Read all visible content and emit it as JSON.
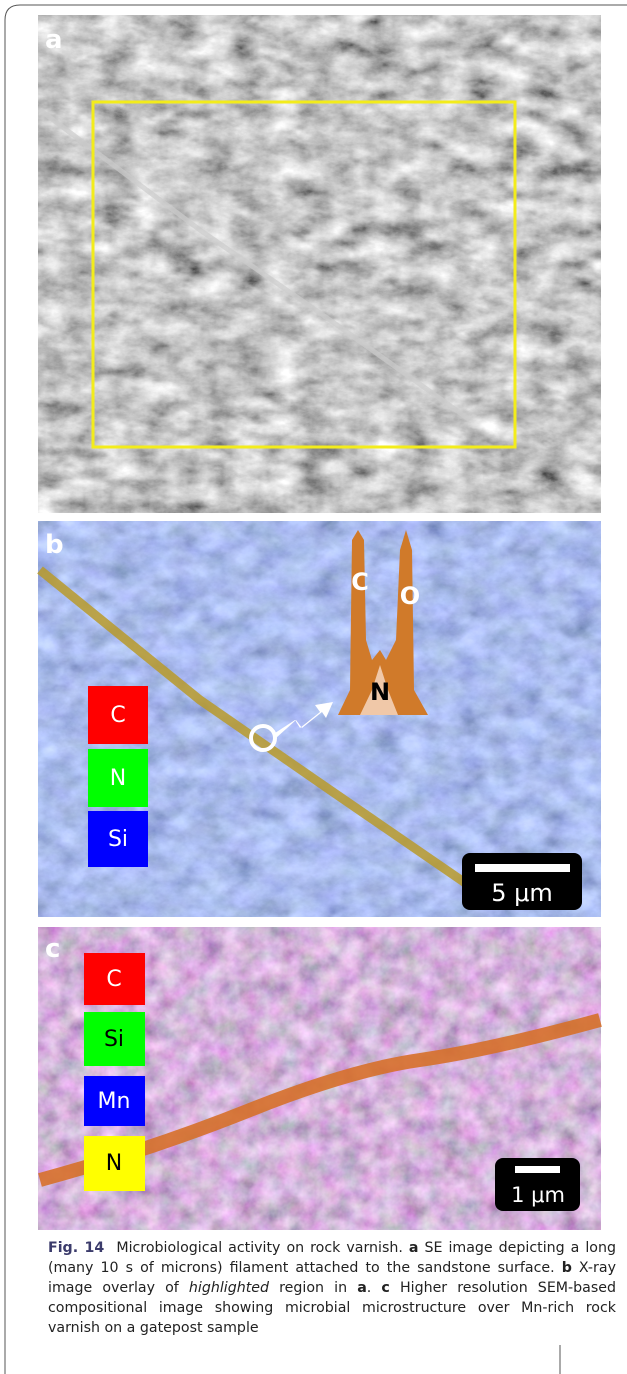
{
  "panels": [
    {
      "label": "a"
    },
    {
      "label": "b",
      "legend": [
        "C",
        "N",
        "Si"
      ],
      "peaks": [
        "C",
        "O",
        "N"
      ],
      "scale_bar": "5 μm"
    },
    {
      "label": "c",
      "legend": [
        "C",
        "Si",
        "Mn",
        "N"
      ],
      "scale_bar": "1 μm"
    }
  ],
  "caption": {
    "label": "Fig. 14",
    "segments": [
      "Microbiological activity on rock varnish. ",
      "a",
      " SE image depicting a long (many 10 s of microns) filament attached to the sandstone surface. ",
      "b",
      " X-ray image overlay of ",
      "highlighted",
      " region in ",
      "a",
      ". ",
      "c",
      " Higher resolution SEM-based compositional image showing microbial microstructure over Mn-rich rock varnish on a gatepost sample"
    ]
  }
}
